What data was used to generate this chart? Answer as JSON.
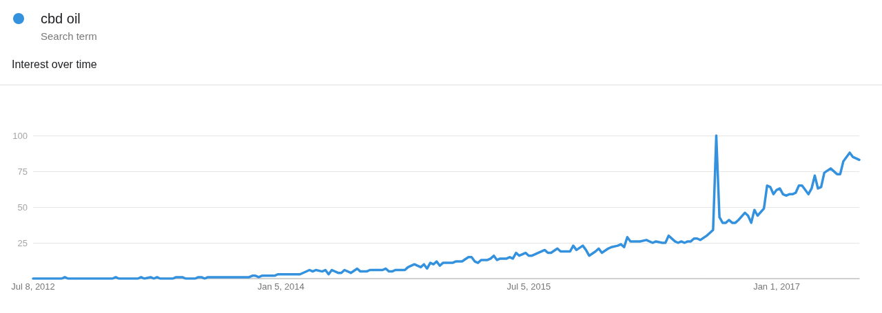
{
  "chart_data": {
    "type": "line",
    "title": "Interest over time",
    "legend_title": "Search term",
    "legend": "top left",
    "grid": "y",
    "xlim": [
      "2012-07-08",
      "2017-07-02"
    ],
    "xticks": [
      {
        "value": "2012-07-08",
        "label": "Jul 8, 2012"
      },
      {
        "value": "2014-01-05",
        "label": "Jan 5, 2014"
      },
      {
        "value": "2015-07-05",
        "label": "Jul 5, 2015"
      },
      {
        "value": "2017-01-01",
        "label": "Jan 1, 2017"
      }
    ],
    "ylim": [
      0,
      100
    ],
    "yticks": [
      25,
      50,
      75,
      100
    ],
    "x": [
      "2012-07-08",
      "2012-09-09",
      "2012-09-16",
      "2012-09-23",
      "2012-12-30",
      "2013-01-06",
      "2013-01-13",
      "2013-02-24",
      "2013-03-03",
      "2013-03-10",
      "2013-03-24",
      "2013-03-31",
      "2013-04-07",
      "2013-04-14",
      "2013-05-12",
      "2013-05-19",
      "2013-06-02",
      "2013-06-09",
      "2013-06-30",
      "2013-07-07",
      "2013-07-14",
      "2013-07-21",
      "2013-07-28",
      "2013-10-27",
      "2013-11-03",
      "2013-11-10",
      "2013-11-17",
      "2013-11-24",
      "2013-12-22",
      "2013-12-29",
      "2014-02-16",
      "2014-03-09",
      "2014-03-16",
      "2014-03-23",
      "2014-04-06",
      "2014-04-13",
      "2014-04-20",
      "2014-04-27",
      "2014-05-11",
      "2014-05-18",
      "2014-05-25",
      "2014-06-08",
      "2014-06-22",
      "2014-06-29",
      "2014-07-13",
      "2014-07-20",
      "2014-08-17",
      "2014-08-24",
      "2014-08-31",
      "2014-09-07",
      "2014-09-14",
      "2014-10-05",
      "2014-10-12",
      "2014-10-26",
      "2014-11-09",
      "2014-11-16",
      "2014-11-23",
      "2014-11-30",
      "2014-12-07",
      "2014-12-14",
      "2014-12-21",
      "2014-12-28",
      "2015-01-18",
      "2015-01-25",
      "2015-02-08",
      "2015-02-22",
      "2015-03-01",
      "2015-03-08",
      "2015-03-15",
      "2015-03-22",
      "2015-04-05",
      "2015-04-12",
      "2015-04-19",
      "2015-04-26",
      "2015-05-03",
      "2015-05-17",
      "2015-05-24",
      "2015-05-31",
      "2015-06-07",
      "2015-06-14",
      "2015-06-28",
      "2015-07-05",
      "2015-07-12",
      "2015-08-09",
      "2015-08-16",
      "2015-08-23",
      "2015-09-06",
      "2015-09-13",
      "2015-09-27",
      "2015-10-04",
      "2015-10-11",
      "2015-10-18",
      "2015-11-01",
      "2015-11-08",
      "2015-11-15",
      "2015-11-29",
      "2015-12-06",
      "2015-12-13",
      "2015-12-27",
      "2016-01-03",
      "2016-01-17",
      "2016-01-24",
      "2016-01-31",
      "2016-02-07",
      "2016-02-14",
      "2016-03-06",
      "2016-03-20",
      "2016-04-03",
      "2016-04-10",
      "2016-04-24",
      "2016-05-01",
      "2016-05-08",
      "2016-05-22",
      "2016-05-29",
      "2016-06-05",
      "2016-06-12",
      "2016-06-19",
      "2016-06-26",
      "2016-07-03",
      "2016-07-10",
      "2016-07-17",
      "2016-07-31",
      "2016-08-07",
      "2016-08-14",
      "2016-08-21",
      "2016-08-28",
      "2016-09-04",
      "2016-09-11",
      "2016-09-18",
      "2016-09-25",
      "2016-10-02",
      "2016-10-09",
      "2016-10-23",
      "2016-10-30",
      "2016-11-06",
      "2016-11-13",
      "2016-11-20",
      "2016-12-04",
      "2016-12-11",
      "2016-12-18",
      "2016-12-25",
      "2017-01-01",
      "2017-01-08",
      "2017-01-15",
      "2017-01-22",
      "2017-01-29",
      "2017-02-05",
      "2017-02-12",
      "2017-02-19",
      "2017-02-26",
      "2017-03-12",
      "2017-03-19",
      "2017-03-26",
      "2017-04-02",
      "2017-04-09",
      "2017-04-16",
      "2017-04-30",
      "2017-05-14",
      "2017-05-21",
      "2017-05-28",
      "2017-06-11",
      "2017-06-18",
      "2017-07-02"
    ],
    "series": [
      {
        "name": "cbd oil",
        "color": "#3391de",
        "values": [
          0,
          0,
          1,
          0,
          0,
          1,
          0,
          0,
          1,
          0,
          1,
          0,
          1,
          0,
          0,
          1,
          1,
          0,
          0,
          1,
          1,
          0,
          1,
          1,
          2,
          2,
          1,
          2,
          2,
          3,
          3,
          6,
          5,
          6,
          5,
          6,
          3,
          6,
          4,
          4,
          6,
          4,
          7,
          5,
          5,
          6,
          6,
          7,
          5,
          5,
          6,
          6,
          8,
          10,
          8,
          10,
          7,
          11,
          10,
          12,
          9,
          11,
          11,
          12,
          12,
          15,
          15,
          12,
          11,
          13,
          13,
          14,
          16,
          13,
          14,
          14,
          15,
          14,
          18,
          16,
          18,
          16,
          16,
          20,
          18,
          18,
          21,
          19,
          19,
          19,
          23,
          20,
          23,
          20,
          16,
          19,
          21,
          18,
          21,
          22,
          23,
          24,
          22,
          29,
          26,
          26,
          27,
          25,
          26,
          25,
          25,
          30,
          26,
          25,
          26,
          25,
          26,
          26,
          28,
          28,
          27,
          30,
          32,
          34,
          100,
          43,
          39,
          39,
          41,
          39,
          39,
          41,
          46,
          44,
          39,
          48,
          44,
          49,
          65,
          64,
          59,
          62,
          63,
          59,
          58,
          59,
          59,
          60,
          65,
          65,
          59,
          63,
          72,
          63,
          64,
          74,
          77,
          73,
          73,
          82,
          88,
          85,
          83
        ]
      }
    ]
  }
}
